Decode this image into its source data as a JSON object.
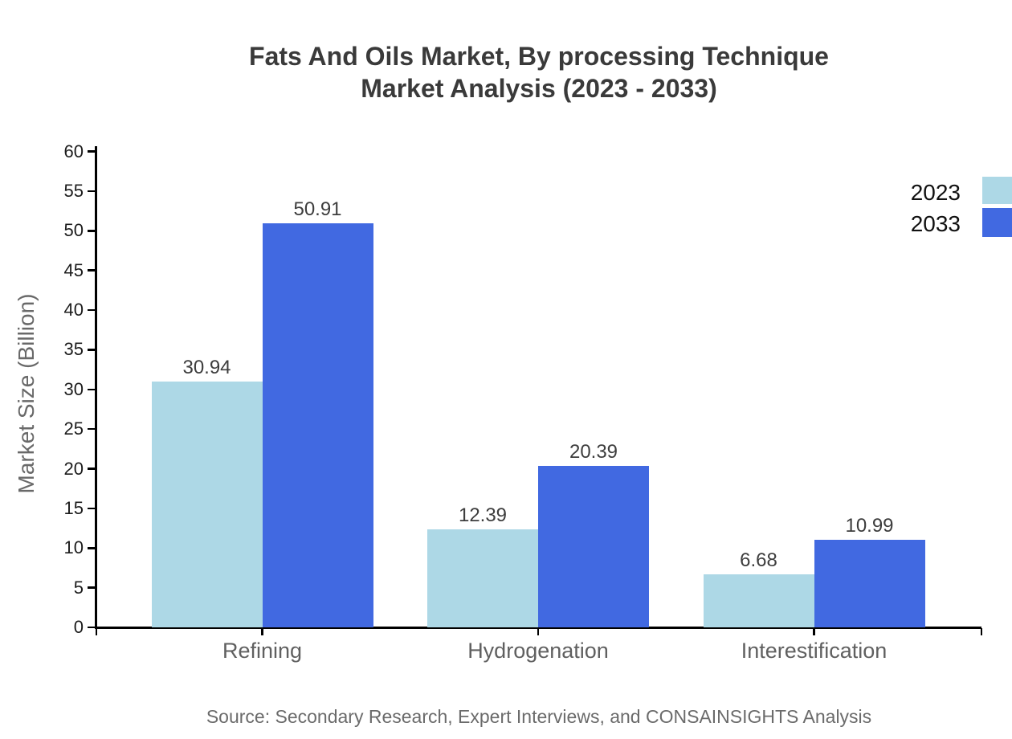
{
  "page": {
    "title_line1": "Fats And Oils Market, By processing Technique",
    "title_line2": "Market Analysis (2023 - 2033)",
    "source": "Source: Secondary Research, Expert Interviews, and CONSAINSIGHTS Analysis"
  },
  "chart_data": {
    "type": "bar",
    "title": "Fats And Oils Market, By processing Technique Market Analysis (2023 - 2033)",
    "categories": [
      "Refining",
      "Hydrogenation",
      "Interestification"
    ],
    "series": [
      {
        "name": "2023",
        "color": "#add8e6",
        "values": [
          30.94,
          12.39,
          6.68
        ]
      },
      {
        "name": "2033",
        "color": "#4169e1",
        "values": [
          50.91,
          20.39,
          10.99
        ]
      }
    ],
    "xlabel": "",
    "ylabel": "Market Size (Billion)",
    "ylim": [
      0,
      60
    ],
    "yticks": [
      0,
      5,
      10,
      15,
      20,
      25,
      30,
      35,
      40,
      45,
      50,
      55,
      60
    ],
    "grid": false,
    "value_labels_shown": true,
    "legend_position": "top-right-outside"
  },
  "colors": {
    "background": "#ffffff",
    "axis": "#000000",
    "title_text": "#3a3a3a",
    "tick_label_text": "#1c1c1c",
    "category_label_text": "#606060",
    "value_label_text": "#3d3d3d",
    "muted_text": "#6b6b6b",
    "series_2023": "#add8e6",
    "series_2033": "#4169e1"
  }
}
